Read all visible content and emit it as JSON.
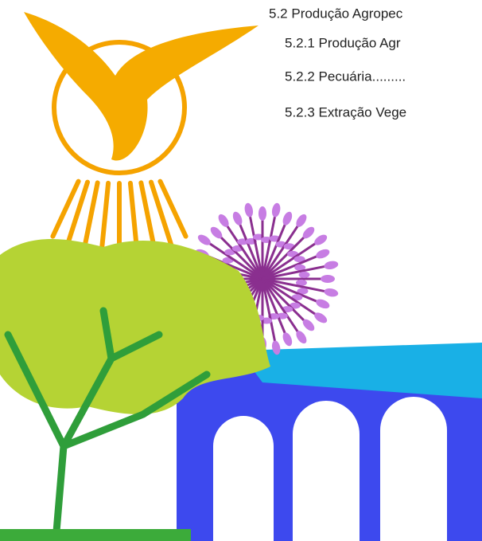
{
  "toc": [
    "5.2 Produção Agropec",
    "5.2.1 Produção Agr",
    "5.2.2 Pecuária.........",
    "5.2.3 Extração Vege"
  ]
}
